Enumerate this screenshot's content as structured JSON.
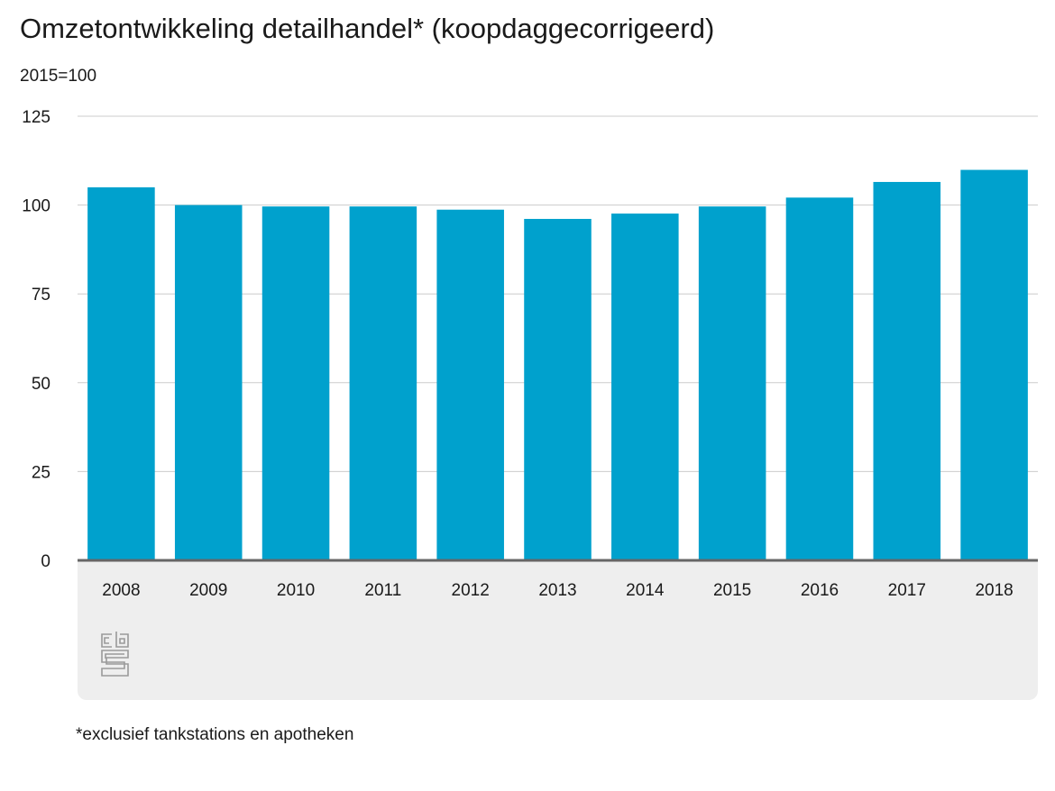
{
  "title": "Omzetontwikkeling detailhandel* (koopdaggecorrigeerd)",
  "unit_label": "2015=100",
  "footnote": "*exclusief tankstations en apotheken",
  "logo_icon": "cbs-logo-icon",
  "colors": {
    "bar": "#00a1cd",
    "gridline": "#cccccc",
    "baseline": "#666666",
    "axis_panel": "#eeeeee",
    "text": "#1a1a1a"
  },
  "chart_data": {
    "type": "bar",
    "title": "Omzetontwikkeling detailhandel* (koopdaggecorrigeerd)",
    "subtitle": "2015=100",
    "xlabel": "",
    "ylabel": "",
    "categories": [
      "2008",
      "2009",
      "2010",
      "2011",
      "2012",
      "2013",
      "2014",
      "2015",
      "2016",
      "2017",
      "2018"
    ],
    "values": [
      105,
      100,
      99.6,
      99.6,
      98.7,
      96.1,
      97.6,
      99.6,
      102.1,
      106.5,
      109.9
    ],
    "ylim": [
      0,
      125
    ],
    "yticks": [
      0,
      25,
      50,
      75,
      100,
      125
    ],
    "grid": true,
    "legend": "none"
  }
}
